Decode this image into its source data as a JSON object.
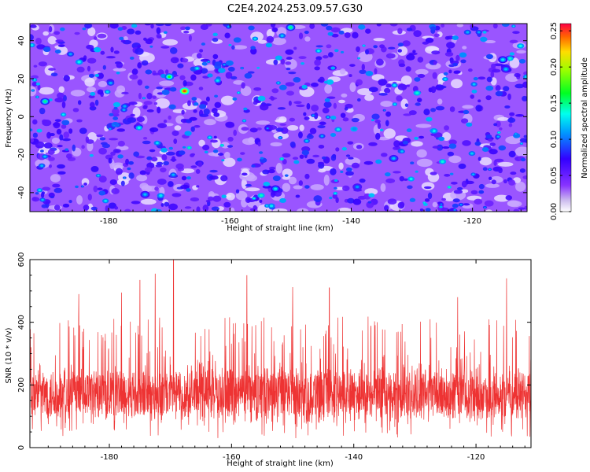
{
  "title": "C2E4.2024.253.09.57.G30",
  "chart_data": [
    {
      "type": "heatmap",
      "xlabel": "Height of straight line (km)",
      "ylabel": "Frequency (Hz)",
      "xlim": [
        -193,
        -111
      ],
      "ylim": [
        -50,
        49
      ],
      "xticks": [
        -180,
        -160,
        -140,
        -120
      ],
      "yticks": [
        -40,
        -20,
        0,
        20,
        40
      ],
      "colorbar": {
        "label": "Normalized spectral amplitude",
        "range": [
          0.0,
          0.26
        ],
        "ticks": [
          0.0,
          0.05,
          0.1,
          0.15,
          0.2,
          0.25
        ],
        "colormap": "white-purple-blue-cyan-green-yellow-red"
      },
      "notable_peaks": [
        {
          "x": -167.5,
          "y": 13.5,
          "value": 0.25
        },
        {
          "x": -170,
          "y": 21,
          "value": 0.17
        },
        {
          "x": -190.5,
          "y": 8,
          "value": 0.15
        },
        {
          "x": -150,
          "y": 47,
          "value": 0.15
        },
        {
          "x": -152.5,
          "y": -38,
          "value": 0.13
        },
        {
          "x": -115,
          "y": 30,
          "value": 0.13
        },
        {
          "x": -114.5,
          "y": 25,
          "value": 0.12
        },
        {
          "x": -133,
          "y": -22,
          "value": 0.12
        },
        {
          "x": -174,
          "y": -41,
          "value": 0.12
        },
        {
          "x": -139,
          "y": -37,
          "value": 0.11
        }
      ]
    },
    {
      "type": "line",
      "xlabel": "Height of straight line (km)",
      "ylabel": "SNR (10 * v/v)",
      "xlim": [
        -193,
        -111
      ],
      "ylim": [
        0,
        600
      ],
      "xticks": [
        -180,
        -160,
        -140,
        -120
      ],
      "yticks": [
        0,
        200,
        400,
        600
      ],
      "color": "#ee3333",
      "series": [
        {
          "stats": {
            "typical_range": [
              90,
              260
            ],
            "mean": 170
          }
        },
        {
          "notable_spikes": [
            {
              "x": -169.5,
              "y": 600
            },
            {
              "x": -172.5,
              "y": 555
            },
            {
              "x": -157.5,
              "y": 550
            },
            {
              "x": -175,
              "y": 535
            },
            {
              "x": -115,
              "y": 540
            },
            {
              "x": -144,
              "y": 510
            },
            {
              "x": -150,
              "y": 512
            },
            {
              "x": -178,
              "y": 495
            },
            {
              "x": -185,
              "y": 490
            },
            {
              "x": -123,
              "y": 480
            }
          ]
        }
      ]
    }
  ]
}
